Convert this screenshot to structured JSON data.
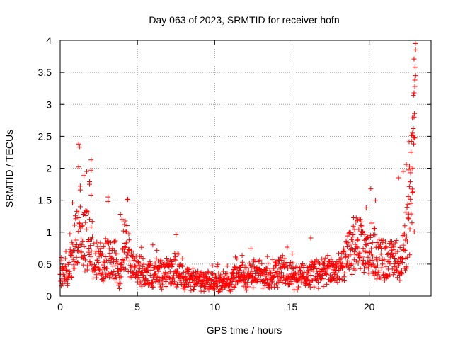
{
  "chart_data": {
    "type": "scatter",
    "title": "Day 063 of 2023, SRMTID for receiver hofn",
    "xlabel": "GPS time / hours",
    "ylabel": "SRMTID / TECUs",
    "xlim": [
      0,
      24
    ],
    "ylim": [
      0,
      4
    ],
    "xticks": [
      0,
      5,
      10,
      15,
      20
    ],
    "xtick_labels": [
      "0",
      "5",
      "10",
      "15",
      "20"
    ],
    "yticks": [
      0,
      0.5,
      1,
      1.5,
      2,
      2.5,
      3,
      3.5,
      4
    ],
    "ytick_labels": [
      "0",
      "0.5",
      "1",
      "1.5",
      "2",
      "2.5",
      "3",
      "3.5",
      "4"
    ],
    "grid": true,
    "marker": "+",
    "marker_color": "#ff0000",
    "series": [
      {
        "name": "SRMTID",
        "x_range": [
          0,
          23
        ],
        "x_step_hours": 0.0167,
        "baseline": [
          [
            0.0,
            0.4
          ],
          [
            0.5,
            0.35
          ],
          [
            1.0,
            0.85
          ],
          [
            1.5,
            0.95
          ],
          [
            2.0,
            0.8
          ],
          [
            2.5,
            0.45
          ],
          [
            3.0,
            0.55
          ],
          [
            3.5,
            0.6
          ],
          [
            3.8,
            0.25
          ],
          [
            4.2,
            0.8
          ],
          [
            4.8,
            0.4
          ],
          [
            5.5,
            0.35
          ],
          [
            6.5,
            0.35
          ],
          [
            7.5,
            0.38
          ],
          [
            8.5,
            0.25
          ],
          [
            9.5,
            0.22
          ],
          [
            10.5,
            0.22
          ],
          [
            11.5,
            0.3
          ],
          [
            12.5,
            0.35
          ],
          [
            13.5,
            0.35
          ],
          [
            14.5,
            0.38
          ],
          [
            15.5,
            0.3
          ],
          [
            16.5,
            0.38
          ],
          [
            17.5,
            0.38
          ],
          [
            18.3,
            0.45
          ],
          [
            18.8,
            0.7
          ],
          [
            19.3,
            0.85
          ],
          [
            19.8,
            0.6
          ],
          [
            20.3,
            0.75
          ],
          [
            20.8,
            0.55
          ],
          [
            21.5,
            0.6
          ],
          [
            22.0,
            0.4
          ],
          [
            22.3,
            0.75
          ],
          [
            22.6,
            1.2
          ],
          [
            22.8,
            1.8
          ],
          [
            23.0,
            2.5
          ]
        ],
        "peaks": [
          [
            1.2,
            2.38
          ],
          [
            1.25,
            2.33
          ],
          [
            1.2,
            2.02
          ],
          [
            1.3,
            1.72
          ],
          [
            1.3,
            1.66
          ],
          [
            2.0,
            2.13
          ],
          [
            2.0,
            1.97
          ],
          [
            1.9,
            1.79
          ],
          [
            1.9,
            1.75
          ],
          [
            2.0,
            1.58
          ],
          [
            3.1,
            1.55
          ],
          [
            3.1,
            1.48
          ],
          [
            3.9,
            1.28
          ],
          [
            4.0,
            1.2
          ],
          [
            7.5,
            0.96
          ],
          [
            20.1,
            1.68
          ],
          [
            20.4,
            1.5
          ],
          [
            19.8,
            1.38
          ],
          [
            21.9,
            1.85
          ],
          [
            22.2,
            1.95
          ],
          [
            22.4,
            2.06
          ],
          [
            22.6,
            2.03
          ],
          [
            22.7,
            2.25
          ],
          [
            22.8,
            2.55
          ],
          [
            22.85,
            2.62
          ],
          [
            22.9,
            2.8
          ],
          [
            22.9,
            3.18
          ],
          [
            22.95,
            3.28
          ],
          [
            22.95,
            3.38
          ],
          [
            23.0,
            3.45
          ],
          [
            22.9,
            3.71
          ],
          [
            22.8,
            1.62
          ],
          [
            22.7,
            1.45
          ],
          [
            22.5,
            1.22
          ],
          [
            22.3,
            1.1
          ]
        ]
      }
    ]
  }
}
